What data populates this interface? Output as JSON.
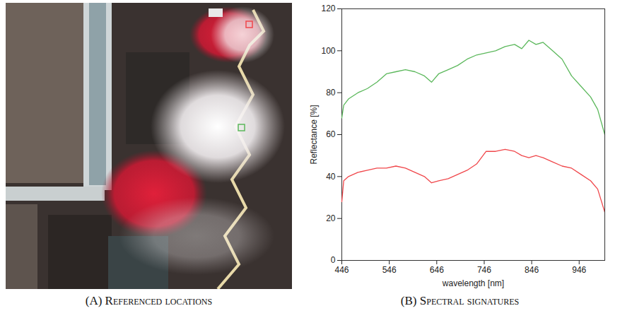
{
  "chart_data": [
    {
      "type": "image",
      "caption": "(A) Referenced locations"
    },
    {
      "type": "line",
      "caption": "(B) Spectral signatures",
      "x_label": "wavelength [nm]",
      "y_label": "Reflectance [%]",
      "x": [
        446,
        450,
        460,
        480,
        500,
        520,
        540,
        560,
        580,
        600,
        620,
        635,
        650,
        670,
        690,
        710,
        730,
        750,
        770,
        790,
        810,
        825,
        840,
        855,
        870,
        890,
        910,
        930,
        950,
        970,
        985,
        1000
      ],
      "series": [
        {
          "color": "#5cb85c",
          "values": [
            68,
            74,
            77,
            80,
            82,
            85,
            89,
            90,
            91,
            90,
            88,
            85,
            89,
            91,
            93,
            96,
            98,
            99,
            100,
            102,
            103,
            101,
            105,
            103,
            104,
            100,
            96,
            88,
            83,
            78,
            72,
            60
          ]
        },
        {
          "color": "#f0474b",
          "values": [
            28,
            38,
            40,
            42,
            43,
            44,
            44,
            45,
            44,
            42,
            40,
            37,
            38,
            39,
            41,
            43,
            46,
            52,
            52,
            53,
            52,
            50,
            49,
            50,
            49,
            47,
            45,
            44,
            41,
            38,
            34,
            23
          ]
        }
      ],
      "xlim": [
        446,
        1000
      ],
      "xticks": [
        446,
        546,
        646,
        746,
        846,
        946
      ],
      "ylim": [
        0,
        120
      ],
      "yticks": [
        0,
        20,
        40,
        60,
        80,
        100,
        120
      ],
      "grid": false
    }
  ]
}
